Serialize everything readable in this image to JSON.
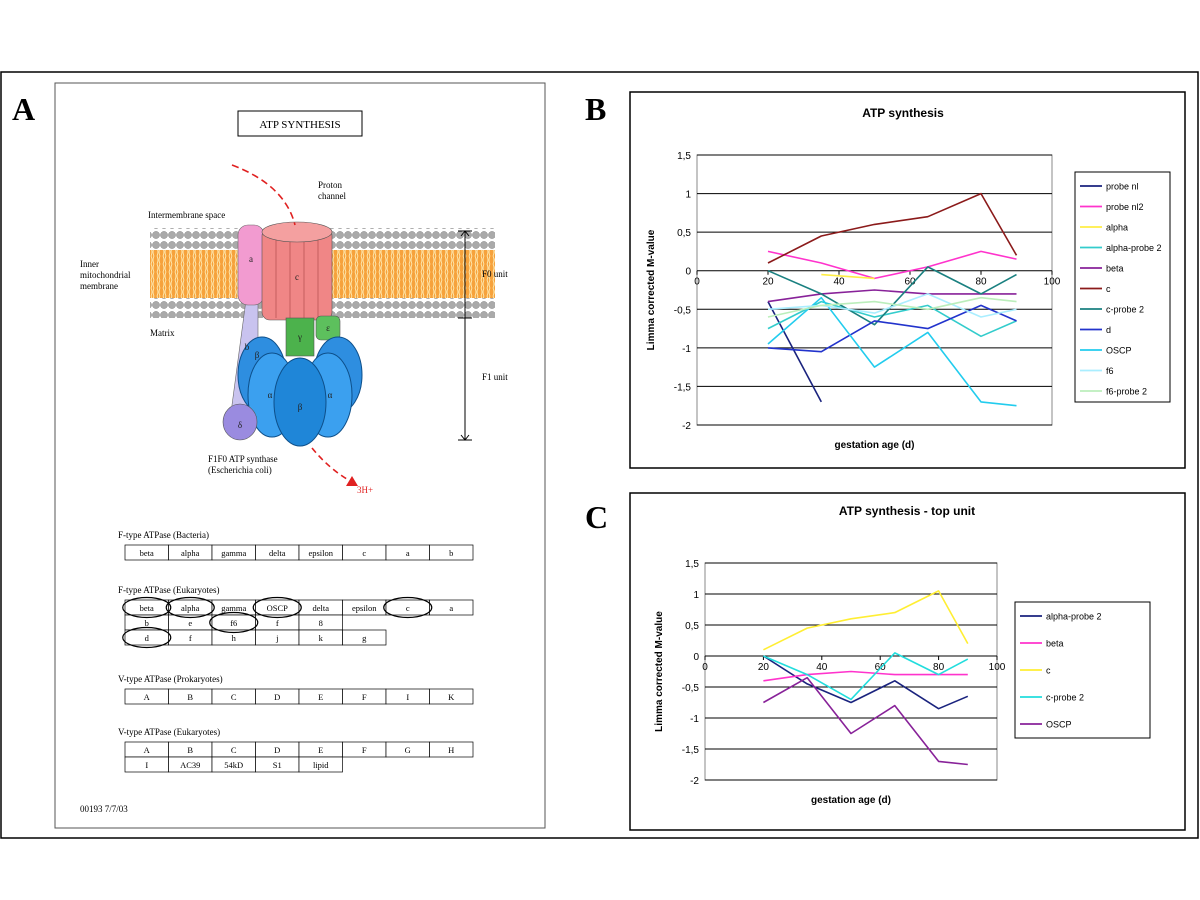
{
  "panel_a": {
    "label": "A",
    "title": "ATP SYNTHESIS",
    "diagram": {
      "proton_channel": [
        "Proton",
        "channel"
      ],
      "intermembrane": "Intermembrane space",
      "inner_membrane": [
        "Inner",
        "mitochondrial",
        "membrane"
      ],
      "matrix": "Matrix",
      "f0_unit": "F0 unit",
      "f1_unit": "F1 unit",
      "synthase": [
        "F1F0 ATP synthase",
        "(Escherichia coli)"
      ],
      "protons": "3H+",
      "subunits": [
        "a",
        "b",
        "c",
        "γ",
        "ε",
        "β",
        "α",
        "β",
        "α",
        "δ"
      ]
    },
    "tables": [
      {
        "title": "F-type ATPase (Bacteria)",
        "rows": [
          [
            "beta",
            "alpha",
            "gamma",
            "delta",
            "epsilon",
            "c",
            "a",
            "b"
          ]
        ]
      },
      {
        "title": "F-type ATPase (Eukaryotes)",
        "rows": [
          [
            "beta",
            "alpha",
            "gamma",
            "OSCP",
            "delta",
            "epsilon",
            "c",
            "a"
          ],
          [
            "b",
            "e",
            "f6",
            "f",
            "8"
          ],
          [
            "d",
            "f",
            "h",
            "j",
            "k",
            "g"
          ]
        ]
      },
      {
        "title": "V-type ATPase (Prokaryotes)",
        "rows": [
          [
            "A",
            "B",
            "C",
            "D",
            "E",
            "F",
            "I",
            "K"
          ]
        ]
      },
      {
        "title": "V-type ATPase (Eukaryotes)",
        "rows": [
          [
            "A",
            "B",
            "C",
            "D",
            "E",
            "F",
            "G",
            "H"
          ],
          [
            "I",
            "AC39",
            "54kD",
            "S1",
            "lipid"
          ]
        ]
      }
    ],
    "footer": "00193   7/7/03"
  },
  "chart_data": [
    {
      "type": "line",
      "label": "B",
      "title": "ATP synthesis",
      "x_label": "gestation age (d)",
      "y_label": "Limma corrected M-value",
      "x": [
        20,
        35,
        50,
        65,
        80,
        90
      ],
      "xlim": [
        0,
        100
      ],
      "xticks": [
        0,
        20,
        40,
        60,
        80,
        100
      ],
      "ylim": [
        -2,
        1.5
      ],
      "yticks": [
        -2,
        {
          "value": -1.5,
          "label": "-1,5"
        },
        -1,
        {
          "value": -0.5,
          "label": "-0,5"
        },
        0,
        {
          "value": 0.5,
          "label": "0,5"
        },
        1,
        {
          "value": 1.5,
          "label": "1,5"
        }
      ],
      "grid": true,
      "legend": "right",
      "series": [
        {
          "name": "probe nl",
          "color": "#1a237e",
          "values": [
            -0.4,
            -1.7,
            null,
            null,
            null,
            null
          ]
        },
        {
          "name": "probe nl2",
          "color": "#ff33cc",
          "values": [
            0.25,
            0.1,
            -0.1,
            0.05,
            0.25,
            0.15
          ]
        },
        {
          "name": "alpha",
          "color": "#ffee44",
          "values": [
            null,
            -0.05,
            -0.1,
            null,
            null,
            null
          ]
        },
        {
          "name": "alpha-probe 2",
          "color": "#33cccc",
          "values": [
            -0.75,
            -0.4,
            -0.6,
            -0.45,
            -0.85,
            -0.65
          ]
        },
        {
          "name": "beta",
          "color": "#882299",
          "values": [
            -0.4,
            -0.3,
            -0.25,
            -0.3,
            -0.3,
            -0.3
          ]
        },
        {
          "name": "c",
          "color": "#8b1a1a",
          "values": [
            0.1,
            0.45,
            0.6,
            0.7,
            1.0,
            0.2
          ]
        },
        {
          "name": "c-probe 2",
          "color": "#1a8080",
          "values": [
            0,
            -0.3,
            -0.7,
            0.05,
            -0.3,
            -0.05
          ]
        },
        {
          "name": "d",
          "color": "#2233cc",
          "values": [
            -1.0,
            -1.05,
            -0.65,
            -0.75,
            -0.45,
            -0.65
          ]
        },
        {
          "name": "OSCP",
          "color": "#22ccee",
          "values": [
            -0.95,
            -0.35,
            -1.25,
            -0.8,
            -1.7,
            -1.75
          ]
        },
        {
          "name": "f6",
          "color": "#aaeeff",
          "values": [
            -0.5,
            -0.45,
            -0.55,
            -0.3,
            -0.6,
            -0.5
          ]
        },
        {
          "name": "f6-probe 2",
          "color": "#bbeebb",
          "values": [
            -0.6,
            -0.45,
            -0.4,
            -0.5,
            -0.35,
            -0.4
          ]
        }
      ]
    },
    {
      "type": "line",
      "label": "C",
      "title": "ATP synthesis - top unit",
      "x_label": "gestation age (d)",
      "y_label": "Limma corrected M-value",
      "x": [
        20,
        35,
        50,
        65,
        80,
        90
      ],
      "xlim": [
        0,
        100
      ],
      "xticks": [
        0,
        20,
        40,
        60,
        80,
        100
      ],
      "ylim": [
        -2,
        1.5
      ],
      "yticks": [
        -2,
        {
          "value": -1.5,
          "label": "-1,5"
        },
        -1,
        {
          "value": -0.5,
          "label": "-0,5"
        },
        0,
        {
          "value": 0.5,
          "label": "0,5"
        },
        1,
        {
          "value": 1.5,
          "label": "1,5"
        }
      ],
      "grid": true,
      "legend": "right",
      "series": [
        {
          "name": "alpha-probe 2",
          "color": "#1a237e",
          "values": [
            0,
            -0.45,
            -0.75,
            -0.4,
            -0.85,
            -0.65
          ]
        },
        {
          "name": "beta",
          "color": "#ff33cc",
          "values": [
            -0.4,
            -0.3,
            -0.25,
            -0.3,
            -0.3,
            -0.3
          ]
        },
        {
          "name": "c",
          "color": "#ffee33",
          "values": [
            0.1,
            0.45,
            0.6,
            0.7,
            1.05,
            0.2
          ]
        },
        {
          "name": "c-probe 2",
          "color": "#22dddd",
          "values": [
            0,
            -0.3,
            -0.7,
            0.05,
            -0.3,
            -0.05
          ]
        },
        {
          "name": "OSCP",
          "color": "#882299",
          "values": [
            -0.75,
            -0.35,
            -1.25,
            -0.8,
            -1.7,
            -1.75
          ]
        }
      ]
    }
  ]
}
